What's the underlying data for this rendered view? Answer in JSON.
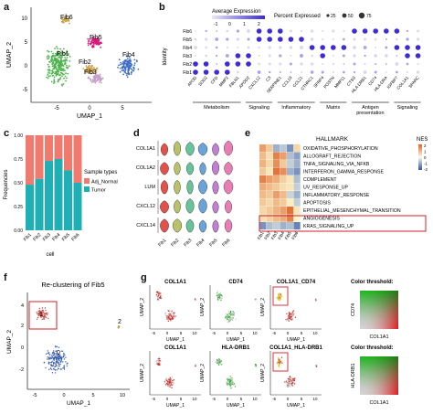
{
  "panel_letters": {
    "a": "a",
    "b": "b",
    "c": "c",
    "d": "d",
    "e": "e",
    "f": "f",
    "g": "g"
  },
  "panel_a": {
    "cluster_labels": [
      "Fib6",
      "Fib5",
      "Fib1",
      "Fib2",
      "Fib3",
      "Fib4"
    ],
    "xlabel": "UMAP_1",
    "ylabel": "UMAP_2",
    "xticks": [
      "-5",
      "0",
      "5"
    ],
    "yticks": [
      "10",
      "5",
      "0",
      "-5"
    ],
    "colors": {
      "Fib1": "#4db34d",
      "Fib2": "#d4a85a",
      "Fib3": "#c7a0c9",
      "Fib4": "#3f6fc5",
      "Fib5": "#d6197a",
      "Fib6": "#c8a64a"
    }
  },
  "panel_b": {
    "legend_avg_title": "Average Expression",
    "legend_avg_ticks": [
      "-1",
      "0",
      "1",
      "2"
    ],
    "legend_pct_title": "Percent Expressed",
    "legend_pct_values": [
      "25",
      "50",
      "75"
    ],
    "ylabel": "Identity",
    "rows": [
      "Fib6",
      "Fib5",
      "Fib4",
      "Fib3",
      "Fib2",
      "Fib1"
    ],
    "genes": [
      "APOD",
      "SOD2",
      "CFD",
      "MMP2",
      "FBLN1",
      "APOD2",
      "CXCL12",
      "C3",
      "SERPINE1",
      "CCL19",
      "CCL21",
      "CTHRC1",
      "SFRP4",
      "POSTN",
      "MMP11",
      "CTSS",
      "HLA-DRB1",
      "CD74",
      "HLA-DRA",
      "IGFBP7",
      "COL1A1",
      "SPARC"
    ],
    "groups": [
      "Metabolism",
      "Signaling",
      "Inflammatory",
      "Matrix",
      "Antigen\npresentation",
      "Signaling"
    ]
  },
  "panel_c": {
    "chart_data": {
      "type": "bar",
      "categories": [
        "Fib1",
        "Fib2",
        "Fib3",
        "Fib4",
        "Fib5",
        "Fib6"
      ],
      "series": [
        {
          "name": "Adj_Normal",
          "values": [
            0.52,
            0.46,
            0.27,
            0.25,
            0.37,
            0.5
          ]
        },
        {
          "name": "Tumor",
          "values": [
            0.48,
            0.54,
            0.73,
            0.75,
            0.63,
            0.5
          ]
        }
      ],
      "xlabel": "cell",
      "ylabel": "Frequencies",
      "ylim": [
        0,
        1
      ],
      "yticks": [
        "1.00",
        "0.75",
        "0.50",
        "0.25",
        "0.00"
      ],
      "legend_title": "Sample types",
      "colors": {
        "Adj_Normal": "#f07a6e",
        "Tumor": "#1fb0b5"
      }
    }
  },
  "panel_d": {
    "genes": [
      "COL1A1",
      "COL1A2",
      "LUM",
      "CXCL12",
      "CXCL14"
    ],
    "clusters": [
      "Fib1",
      "Fib2",
      "Fib3",
      "Fib4",
      "Fib5",
      "Fib6"
    ],
    "colors": [
      "#e0524a",
      "#b9c16a",
      "#69c39a",
      "#6aa3d8",
      "#c07fd3",
      "#e77fb4"
    ]
  },
  "panel_e": {
    "title": "HALLMARK",
    "legend_title": "NES",
    "legend_ticks": [
      "2",
      "1",
      "0",
      "-1",
      "-2"
    ],
    "pathways": [
      "OXIDATIVE_PHOSPHORYLATION",
      "ALLOGRAFT_REJECTION",
      "TNFA_SIGNALING_VIA_NFKB",
      "INTERFERON_GAMMA_RESPONSE",
      "COMPLEMENT",
      "UV_RESPONSE_UP",
      "INFLAMMATORY_RESPONSE",
      "APOPTOSIS",
      "EPITHELIAL_MESENCHYMAL_TRANSITION",
      "ANGIOGENESIS",
      "KRAS_SIGNALING_UP"
    ],
    "columns": [
      "Fib1",
      "Fib2",
      "Fib3",
      "Fib4",
      "Fib5",
      "Fib6"
    ]
  },
  "panel_f": {
    "title": "Re-clustering of Fib5",
    "xlabel": "UMAP_1",
    "ylabel": "UMAP_2",
    "cluster_labels": [
      "0",
      "1",
      "2"
    ],
    "xticks": [
      "-5",
      "0",
      "5",
      "10"
    ],
    "yticks": [
      "4",
      "2",
      "0",
      "-2"
    ]
  },
  "panel_g": {
    "row1_titles": [
      "COL1A1",
      "CD74",
      "COL1A1_CD74",
      "Color threshold:"
    ],
    "row2_titles": [
      "COL1A1",
      "HLA-DRB1",
      "COL1A1_HLA-DRB1",
      "Color threshold:"
    ],
    "xlabel": "UMAP_1",
    "ylabel": "UMAP_2",
    "xticks": [
      "-5",
      "0",
      "5",
      "10"
    ],
    "threshold_xlabel": "COL1A1",
    "threshold_ylabel_row1": "CD74",
    "threshold_ylabel_row2": "HLA-DRB1"
  }
}
